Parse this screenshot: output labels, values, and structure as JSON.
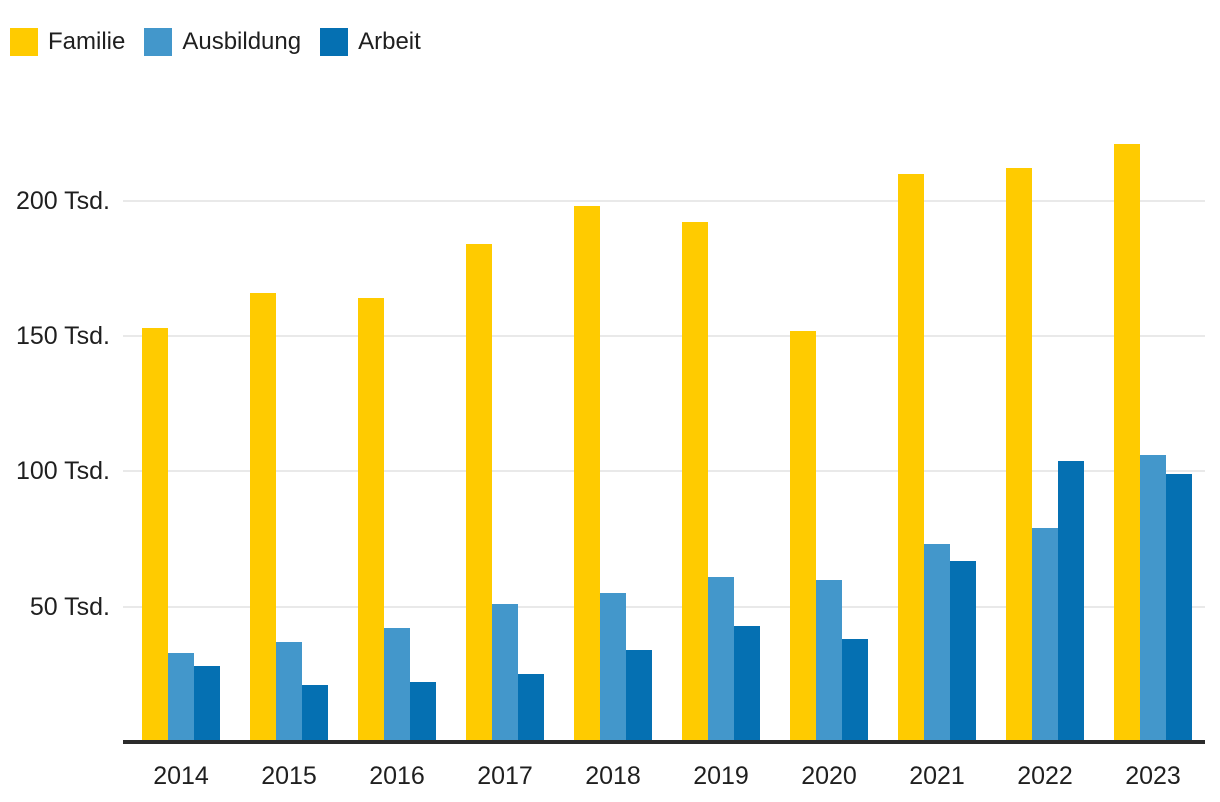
{
  "chart_data": {
    "type": "bar",
    "title": "",
    "categories": [
      "2014",
      "2015",
      "2016",
      "2017",
      "2018",
      "2019",
      "2020",
      "2021",
      "2022",
      "2023"
    ],
    "series": [
      {
        "name": "Familie",
        "color": "#FFCB00",
        "values": [
          153,
          166,
          164,
          184,
          198,
          192,
          152,
          210,
          212,
          221
        ]
      },
      {
        "name": "Ausbildung",
        "color": "#4397CB",
        "values": [
          33,
          37,
          42,
          51,
          55,
          61,
          60,
          73,
          79,
          106
        ]
      },
      {
        "name": "Arbeit",
        "color": "#0570B2",
        "values": [
          28,
          21,
          22,
          25,
          34,
          43,
          38,
          67,
          104,
          99
        ]
      }
    ],
    "unit": "Tsd.",
    "yticks": [
      {
        "value": 50,
        "label": "50 Tsd."
      },
      {
        "value": 100,
        "label": "100 Tsd."
      },
      {
        "value": 150,
        "label": "150 Tsd."
      },
      {
        "value": 200,
        "label": "200 Tsd."
      }
    ],
    "ylim": [
      0,
      237
    ],
    "xlabel": "",
    "ylabel": "",
    "grid": true,
    "legend_position": "top-left"
  },
  "colors": {
    "grid": "#E9E9E9",
    "axis": "#2B2B2B",
    "text": "#1F1F1F",
    "background": "#FFFFFF"
  }
}
